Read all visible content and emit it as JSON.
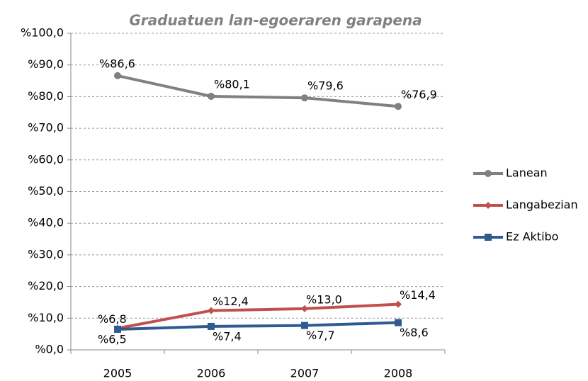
{
  "chart_data": {
    "type": "line",
    "title": "Graduatuen lan-egoeraren garapena",
    "categories": [
      "2005",
      "2006",
      "2007",
      "2008"
    ],
    "series": [
      {
        "name": "Lanean",
        "color": "#808080",
        "marker": "circle",
        "values": [
          86.6,
          80.1,
          79.6,
          76.9
        ],
        "value_labels": [
          "%86,6",
          "%80,1",
          "%79,6",
          "%76,9"
        ]
      },
      {
        "name": "Langabezian",
        "color": "#c0504d",
        "marker": "diamond",
        "values": [
          6.8,
          12.4,
          13.0,
          14.4
        ],
        "value_labels": [
          "%6,8",
          "%12,4",
          "%13,0",
          "%14,4"
        ]
      },
      {
        "name": "Ez Aktibo",
        "color": "#2f5b8f",
        "marker": "square",
        "values": [
          6.5,
          7.4,
          7.7,
          8.6
        ],
        "value_labels": [
          "%6,5",
          "%7,4",
          "%7,7",
          "%8,6"
        ]
      }
    ],
    "ylim": [
      0,
      100
    ],
    "yticks": [
      {
        "value": 0,
        "label": "%0,0"
      },
      {
        "value": 10,
        "label": "%10,0"
      },
      {
        "value": 20,
        "label": "%20,0"
      },
      {
        "value": 30,
        "label": "%30,0"
      },
      {
        "value": 40,
        "label": "%40,0"
      },
      {
        "value": 50,
        "label": "%50,0"
      },
      {
        "value": 60,
        "label": "%60,0"
      },
      {
        "value": 70,
        "label": "%70,0"
      },
      {
        "value": 80,
        "label": "%80,0"
      },
      {
        "value": 90,
        "label": "%90,0"
      },
      {
        "value": 100,
        "label": "%100,0"
      }
    ],
    "grid": true,
    "legend": "right"
  }
}
